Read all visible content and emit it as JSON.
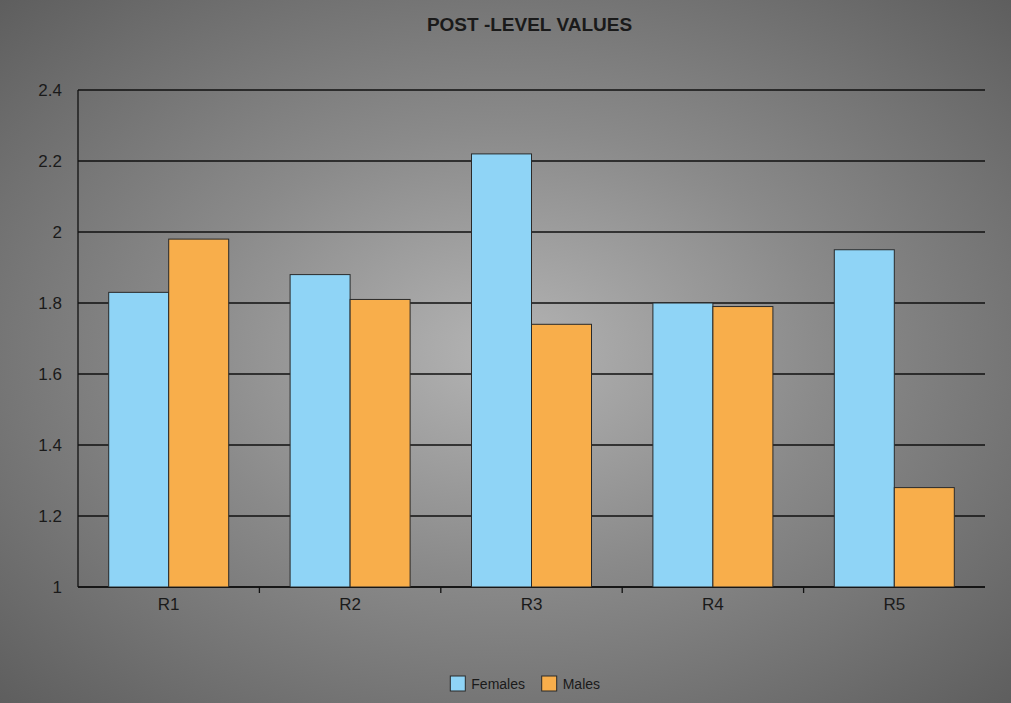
{
  "chart_data": {
    "type": "bar",
    "title": "POST -LEVEL VALUES",
    "categories": [
      "R1",
      "R2",
      "R3",
      "R4",
      "R5"
    ],
    "series": [
      {
        "name": "Females",
        "color": "#8fd4f6",
        "values": [
          1.83,
          1.88,
          2.22,
          1.8,
          1.95
        ]
      },
      {
        "name": "Males",
        "color": "#f8ae4b",
        "values": [
          1.98,
          1.81,
          1.74,
          1.79,
          1.28
        ]
      }
    ],
    "ylim": [
      1,
      2.4
    ],
    "yticks": [
      1,
      1.2,
      1.4,
      1.6,
      1.8,
      2,
      2.2,
      2.4
    ],
    "grid": true,
    "legend": "bottom"
  }
}
